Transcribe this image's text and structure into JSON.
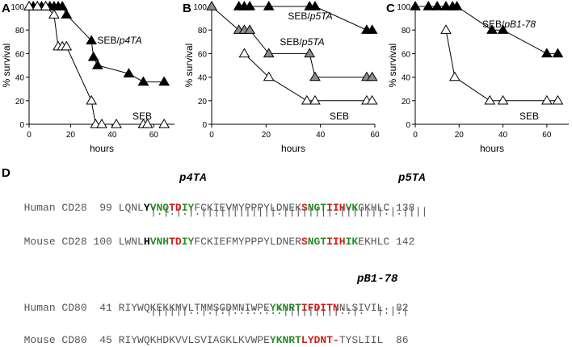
{
  "chart_data": [
    {
      "panel": "A",
      "type": "line",
      "xlabel": "hours",
      "ylabel": "% survival",
      "xlim": [
        0,
        70
      ],
      "ylim": [
        0,
        100
      ],
      "xticks": [
        0,
        20,
        40,
        60
      ],
      "yticks": [
        0,
        20,
        40,
        60,
        80,
        100
      ],
      "grid": false,
      "series": [
        {
          "name": "SEB/p4TA",
          "marker": "filled-triangle",
          "x": [
            0,
            2,
            4,
            6,
            8,
            10,
            12,
            14,
            16,
            18,
            30,
            31,
            33,
            48,
            55,
            65
          ],
          "y": [
            100,
            100,
            100,
            100,
            100,
            100,
            100,
            100,
            100,
            93,
            71,
            57,
            50,
            43,
            36,
            36
          ]
        },
        {
          "name": "SEB",
          "marker": "open-triangle",
          "x": [
            0,
            4,
            8,
            12,
            14,
            16,
            18,
            30,
            32,
            35,
            42,
            55,
            57,
            65
          ],
          "y": [
            100,
            100,
            100,
            93,
            66,
            66,
            66,
            20,
            0,
            0,
            0,
            0,
            0,
            0
          ]
        }
      ]
    },
    {
      "panel": "B",
      "type": "line",
      "xlabel": "hours",
      "ylabel": "% survival",
      "xlim": [
        0,
        60
      ],
      "ylim": [
        0,
        100
      ],
      "xticks": [
        0,
        20,
        40,
        60
      ],
      "yticks": [
        0,
        20,
        40,
        60,
        80,
        100
      ],
      "grid": false,
      "series": [
        {
          "name": "SEB/p5TA",
          "marker": "filled-triangle",
          "x": [
            10,
            12,
            14,
            21,
            36,
            38,
            57,
            59
          ],
          "y": [
            100,
            100,
            100,
            100,
            100,
            100,
            80,
            80
          ]
        },
        {
          "name": "SEB/p5TA",
          "marker": "gray-triangle",
          "x": [
            0,
            10,
            12,
            14,
            21,
            36,
            38,
            57,
            59
          ],
          "y": [
            100,
            80,
            80,
            80,
            60,
            60,
            40,
            40,
            40
          ]
        },
        {
          "name": "SEB",
          "marker": "open-triangle",
          "x": [
            12,
            21,
            35,
            38,
            57,
            59
          ],
          "y": [
            60,
            40,
            20,
            20,
            20,
            20
          ]
        }
      ]
    },
    {
      "panel": "C",
      "type": "line",
      "xlabel": "hours",
      "ylabel": "% survival",
      "xlim": [
        0,
        70
      ],
      "ylim": [
        0,
        100
      ],
      "xticks": [
        0,
        20,
        40,
        60
      ],
      "yticks": [
        0,
        20,
        40,
        60,
        80,
        100
      ],
      "grid": false,
      "series": [
        {
          "name": "SEB/pB1-78",
          "marker": "filled-triangle",
          "x": [
            0,
            6,
            10,
            14,
            17,
            19,
            35,
            40,
            60,
            65
          ],
          "y": [
            100,
            100,
            100,
            100,
            100,
            100,
            80,
            80,
            60,
            60
          ]
        },
        {
          "name": "SEB",
          "marker": "open-triangle",
          "x": [
            14,
            18,
            34,
            40,
            60,
            65
          ],
          "y": [
            80,
            40,
            20,
            20,
            20,
            20
          ]
        }
      ]
    }
  ],
  "panel_letters": {
    "A": "A",
    "B": "B",
    "C": "C",
    "D": "D"
  },
  "legend_labels": {
    "a_treated": "SEB/p4TA",
    "a_control": "SEB",
    "b_treated_top": "SEB/p5TA",
    "b_treated_mid": "SEB/p5TA",
    "b_control": "SEB",
    "c_treated": "SEB/pB1-78",
    "c_control": "SEB"
  },
  "alignment": {
    "cd28": {
      "peptide_1": "p4TA",
      "peptide_2": "p5TA",
      "human_label": "Human CD28",
      "human_start": "99",
      "human_seq_pre": "LQNL",
      "human_p4_1": "Y",
      "human_p4_2": "VNQ",
      "human_p4_3": "TD",
      "human_p4_4": "IY",
      "human_mid": "FCKIEVMYPPPYLDNEK",
      "human_p5_1": "S",
      "human_p5_2": "NGT",
      "human_p5_3": "IIH",
      "human_p5_4": "VK",
      "human_post": "GKHLC",
      "human_end": "138",
      "match": "|.|:|:|.||||||||||||:||||||||:|||||||:|.||||",
      "mouse_label": "Mouse CD28",
      "mouse_start": "100",
      "mouse_seq_pre": "LWNL",
      "mouse_p4_1": "H",
      "mouse_p4_2": "VNH",
      "mouse_p4_3": "TD",
      "mouse_p4_4": "IY",
      "mouse_mid": "FCKIEFMYPPPYLDNER",
      "mouse_p5_1": "S",
      "mouse_p5_2": "NGT",
      "mouse_p5_3": "IIH",
      "mouse_p5_4": "IK",
      "mouse_post": "EKHLC",
      "mouse_end": "142"
    },
    "cd80": {
      "peptide": "pB1-78",
      "human_label": "Human CD80",
      "human_start": "41",
      "human_pre": "RIYWQKEKKMVLTMMSGDMNIWPE",
      "human_b1": "YKNRT",
      "human_b2": "IFDITN",
      "human_post": "NLSIVIL",
      "human_end": "82",
      "match": "||||||..|:|:|::::.:.:|||||||||::|.  |:|:|",
      "mouse_label": "Mouse CD80",
      "mouse_start": "45",
      "mouse_pre": "RIYWQKHDKVVLSVIAGKLKVWPE",
      "mouse_b1": "YKNRT",
      "mouse_b2": "LYDNT-",
      "mouse_post": "TYSLIIL",
      "mouse_end": "86"
    }
  }
}
